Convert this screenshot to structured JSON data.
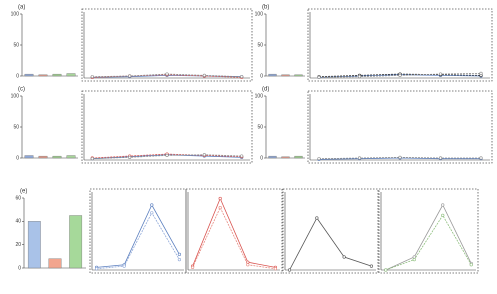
{
  "chart_data": [
    {
      "type": "bar",
      "title": "(a)",
      "values": [
        3,
        2,
        3,
        4
      ],
      "colors": [
        "#8fa8d8",
        "#e39a8a",
        "#9fcf8f",
        "#a8d59b"
      ],
      "ylim": [
        0,
        100
      ],
      "yticks": [
        0,
        50,
        100
      ]
    },
    {
      "type": "line",
      "series": [
        {
          "color": "#5b7fbf",
          "values": [
            1,
            2,
            4,
            3,
            2
          ]
        },
        {
          "color": "#d9534f",
          "values": [
            1,
            3,
            5,
            3,
            1
          ]
        },
        {
          "color": "#8a8a8a",
          "values": [
            2,
            3,
            6,
            4,
            2
          ]
        }
      ],
      "ylim": [
        0,
        100
      ]
    },
    {
      "type": "bar",
      "title": "(b)",
      "values": [
        3,
        2,
        2
      ],
      "colors": [
        "#8fa8d8",
        "#e39a8a",
        "#9fcf8f"
      ],
      "ylim": [
        0,
        100
      ],
      "yticks": [
        0,
        50,
        100
      ]
    },
    {
      "type": "line",
      "series": [
        {
          "color": "#5b7fbf",
          "values": [
            1,
            3,
            5,
            4,
            3
          ]
        },
        {
          "color": "#333333",
          "values": [
            2,
            4,
            6,
            5,
            4
          ]
        },
        {
          "color": "#8a8a8a",
          "values": [
            1,
            2,
            4,
            6,
            7
          ]
        }
      ],
      "ylim": [
        0,
        100
      ]
    },
    {
      "type": "bar",
      "title": "(c)",
      "values": [
        4,
        3,
        3,
        4
      ],
      "colors": [
        "#8fa8d8",
        "#e39a8a",
        "#9fcf8f",
        "#a8d59b"
      ],
      "ylim": [
        0,
        100
      ],
      "yticks": [
        0,
        50,
        100
      ]
    },
    {
      "type": "line",
      "series": [
        {
          "color": "#5b7fbf",
          "values": [
            2,
            5,
            8,
            6,
            4
          ]
        },
        {
          "color": "#d9534f",
          "values": [
            3,
            6,
            9,
            7,
            5
          ]
        },
        {
          "color": "#8a8a8a",
          "values": [
            2,
            4,
            7,
            8,
            6
          ]
        }
      ],
      "ylim": [
        0,
        100
      ]
    },
    {
      "type": "bar",
      "title": "(d)",
      "values": [
        3,
        2,
        3
      ],
      "colors": [
        "#8fa8d8",
        "#e39a8a",
        "#9fcf8f"
      ],
      "ylim": [
        0,
        100
      ],
      "yticks": [
        0,
        50,
        100
      ]
    },
    {
      "type": "line",
      "series": [
        {
          "color": "#5b7fbf",
          "values": [
            1,
            2,
            3,
            2,
            2
          ]
        },
        {
          "color": "#8a8a8a",
          "values": [
            2,
            3,
            4,
            3,
            3
          ]
        }
      ],
      "ylim": [
        0,
        100
      ]
    },
    {
      "type": "bar",
      "title": "(e)",
      "values": [
        40,
        8,
        45
      ],
      "colors": [
        "#a9c2e8",
        "#f2a58e",
        "#a6d99a"
      ],
      "ylim": [
        0,
        60
      ],
      "yticks": [
        0,
        20,
        40,
        60
      ]
    },
    {
      "type": "line",
      "series": [
        {
          "color": "#5b7fbf",
          "values": [
            2,
            4,
            50,
            12
          ]
        },
        {
          "color": "#8fa8d8",
          "values": [
            1,
            3,
            44,
            8
          ]
        }
      ],
      "ylim": [
        0,
        60
      ]
    },
    {
      "type": "line",
      "series": [
        {
          "color": "#d9534f",
          "values": [
            3,
            55,
            6,
            2
          ]
        },
        {
          "color": "#e88a80",
          "values": [
            2,
            48,
            4,
            1
          ]
        }
      ],
      "ylim": [
        0,
        60
      ]
    },
    {
      "type": "line",
      "series": [
        {
          "color": "#555555",
          "values": [
            0,
            40,
            10,
            3
          ]
        }
      ],
      "ylim": [
        0,
        60
      ]
    },
    {
      "type": "line",
      "series": [
        {
          "color": "#999999",
          "values": [
            0,
            10,
            50,
            5
          ]
        },
        {
          "color": "#8fbf7f",
          "values": [
            0,
            8,
            42,
            4
          ]
        }
      ],
      "ylim": [
        0,
        60
      ]
    }
  ]
}
